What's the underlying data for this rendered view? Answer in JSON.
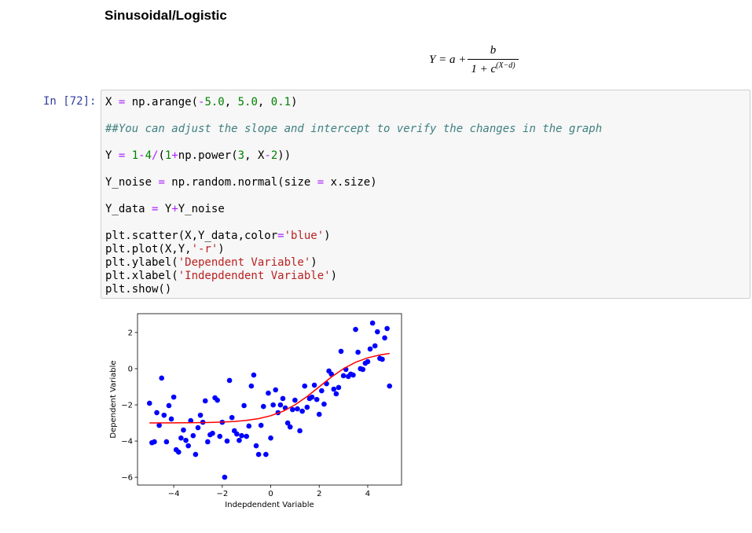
{
  "header": {
    "title": "Sinusoidal/Logistic"
  },
  "formula": {
    "lhs": "Y = a +",
    "numerator": "b",
    "denominator": "1 + c",
    "exponent": "(X−d)"
  },
  "cell": {
    "prompt": "In [72]:",
    "lines": [
      [
        {
          "text": "X ",
          "color": "#000000"
        },
        {
          "text": "=",
          "color": "#aa22ff"
        },
        {
          "text": " np.arange(",
          "color": "#000000"
        },
        {
          "text": "-",
          "color": "#aa22ff"
        },
        {
          "text": "5.0",
          "color": "#008000"
        },
        {
          "text": ", ",
          "color": "#000000"
        },
        {
          "text": "5.0",
          "color": "#008000"
        },
        {
          "text": ", ",
          "color": "#000000"
        },
        {
          "text": "0.1",
          "color": "#008000"
        },
        {
          "text": ")",
          "color": "#000000"
        }
      ],
      [],
      [
        {
          "text": "##You can adjust the slope and intercept to verify the changes in the graph",
          "color": "#408080"
        }
      ],
      [],
      [
        {
          "text": "Y ",
          "color": "#000000"
        },
        {
          "text": "=",
          "color": "#aa22ff"
        },
        {
          "text": " ",
          "color": "#000000"
        },
        {
          "text": "1",
          "color": "#008000"
        },
        {
          "text": "-",
          "color": "#aa22ff"
        },
        {
          "text": "4",
          "color": "#008000"
        },
        {
          "text": "/",
          "color": "#aa22ff"
        },
        {
          "text": "(",
          "color": "#000000"
        },
        {
          "text": "1",
          "color": "#008000"
        },
        {
          "text": "+",
          "color": "#aa22ff"
        },
        {
          "text": "np.power(",
          "color": "#000000"
        },
        {
          "text": "3",
          "color": "#008000"
        },
        {
          "text": ", X",
          "color": "#000000"
        },
        {
          "text": "-",
          "color": "#aa22ff"
        },
        {
          "text": "2",
          "color": "#008000"
        },
        {
          "text": "))",
          "color": "#000000"
        }
      ],
      [],
      [
        {
          "text": "Y_noise ",
          "color": "#000000"
        },
        {
          "text": "=",
          "color": "#aa22ff"
        },
        {
          "text": " np.random.normal(size ",
          "color": "#000000"
        },
        {
          "text": "=",
          "color": "#aa22ff"
        },
        {
          "text": " x.size)",
          "color": "#000000"
        }
      ],
      [],
      [
        {
          "text": "Y_data ",
          "color": "#000000"
        },
        {
          "text": "=",
          "color": "#aa22ff"
        },
        {
          "text": " Y",
          "color": "#000000"
        },
        {
          "text": "+",
          "color": "#aa22ff"
        },
        {
          "text": "Y_noise",
          "color": "#000000"
        }
      ],
      [],
      [
        {
          "text": "plt.scatter(X,Y_data,color",
          "color": "#000000"
        },
        {
          "text": "=",
          "color": "#aa22ff"
        },
        {
          "text": "'blue'",
          "color": "#ba2121"
        },
        {
          "text": ")",
          "color": "#000000"
        }
      ],
      [
        {
          "text": "plt.plot(X,Y,",
          "color": "#000000"
        },
        {
          "text": "'-r'",
          "color": "#ba2121"
        },
        {
          "text": ")",
          "color": "#000000"
        }
      ],
      [
        {
          "text": "plt.ylabel(",
          "color": "#000000"
        },
        {
          "text": "'Dependent Variable'",
          "color": "#ba2121"
        },
        {
          "text": ")",
          "color": "#000000"
        }
      ],
      [
        {
          "text": "plt.xlabel(",
          "color": "#000000"
        },
        {
          "text": "'Indepdendent Variable'",
          "color": "#ba2121"
        },
        {
          "text": ")",
          "color": "#000000"
        }
      ],
      [
        {
          "text": "plt.show()",
          "color": "#000000"
        }
      ]
    ]
  },
  "chart_data": {
    "type": "scatter",
    "xlabel": "Indepdendent Variable",
    "ylabel": "Dependent Variable",
    "xlim": [
      -5.495,
      5.395
    ],
    "ylim": [
      -6.43,
      3.04
    ],
    "xticks": [
      {
        "value": -4,
        "label": "−4"
      },
      {
        "value": -2,
        "label": "−2"
      },
      0,
      2,
      4
    ],
    "yticks": [
      {
        "value": -6,
        "label": "−6"
      },
      {
        "value": -4,
        "label": "−4"
      },
      {
        "value": -2,
        "label": "−2"
      },
      0,
      2
    ],
    "series": [
      {
        "type": "scatter",
        "color": "#0000ff",
        "x": [
          -5,
          -4.9,
          -4.8,
          -4.7,
          -4.6,
          -4.5,
          -4.4,
          -4.3,
          -4.2,
          -4.1,
          -4,
          -3.9,
          -3.8,
          -3.7,
          -3.6,
          -3.5,
          -3.4,
          -3.3,
          -3.2,
          -3.1,
          -3,
          -2.9,
          -2.8,
          -2.7,
          -2.6,
          -2.5,
          -2.4,
          -2.3,
          -2.2,
          -2.1,
          -2,
          -1.9,
          -1.8,
          -1.7,
          -1.6,
          -1.5,
          -1.4,
          -1.3,
          -1.2,
          -1.1,
          -1,
          -0.9,
          -0.8,
          -0.7,
          -0.6,
          -0.5,
          -0.4,
          -0.3,
          -0.2,
          -0.1,
          0,
          0.1,
          0.2,
          0.3,
          0.4,
          0.5,
          0.6,
          0.7,
          0.8,
          0.9,
          1,
          1.1,
          1.2,
          1.3,
          1.4,
          1.5,
          1.6,
          1.7,
          1.8,
          1.9,
          2,
          2.1,
          2.2,
          2.3,
          2.4,
          2.5,
          2.6,
          2.7,
          2.8,
          2.9,
          3,
          3.1,
          3.2,
          3.3,
          3.4,
          3.5,
          3.6,
          3.7,
          3.8,
          3.9,
          4,
          4.1,
          4.2,
          4.3,
          4.4,
          4.5,
          4.6,
          4.7,
          4.8,
          4.9
        ],
        "values": [
          -1.91,
          -4.09,
          -4.04,
          -2.43,
          -3.13,
          -0.52,
          -2.57,
          -4.04,
          -2.04,
          -2.78,
          -1.57,
          -4.48,
          -4.61,
          -3.83,
          -3.39,
          -3.96,
          -4.26,
          -2.87,
          -3.7,
          -4.74,
          -3.26,
          -2.57,
          -2.96,
          -1.78,
          -4.04,
          -3.65,
          -3.57,
          -1.61,
          -1.74,
          -3.74,
          -2.96,
          -6.0,
          -4.0,
          -0.65,
          -2.7,
          -3.43,
          -3.61,
          -3.96,
          -3.7,
          -2.04,
          -3.74,
          -3.17,
          -0.96,
          -0.35,
          -4.26,
          -4.74,
          -3.13,
          -2.09,
          -4.74,
          -1.35,
          -3.83,
          -2.0,
          -1.17,
          -2.43,
          -2.0,
          -1.65,
          -2.17,
          -3.0,
          -3.22,
          -2.26,
          -1.74,
          -2.22,
          -3.43,
          -2.35,
          -0.96,
          -2.13,
          -1.65,
          -1.57,
          -0.91,
          -1.7,
          -2.52,
          -1.22,
          -1.96,
          -0.83,
          -0.13,
          -0.3,
          -1.13,
          -1.39,
          -1.04,
          0.96,
          -0.39,
          -0.04,
          -0.43,
          -0.3,
          -0.35,
          2.17,
          0.91,
          0.0,
          -0.04,
          0.3,
          0.39,
          1.09,
          2.52,
          1.26,
          2.04,
          0.57,
          0.52,
          1.7,
          2.22,
          -0.96
        ]
      },
      {
        "type": "line",
        "color": "#ff0000",
        "x": [
          -5,
          -4,
          -3,
          -2.5,
          -2,
          -1.5,
          -1,
          -0.5,
          0,
          0.5,
          1,
          1.5,
          2,
          2.5,
          3,
          3.5,
          4,
          4.5,
          4.9
        ],
        "values": [
          -2.998,
          -2.995,
          -2.984,
          -2.972,
          -2.951,
          -2.916,
          -2.857,
          -2.759,
          -2.6,
          -2.355,
          -2.0,
          -1.536,
          -1.0,
          -0.464,
          0.0,
          0.354,
          0.6,
          0.759,
          0.84
        ]
      }
    ]
  }
}
